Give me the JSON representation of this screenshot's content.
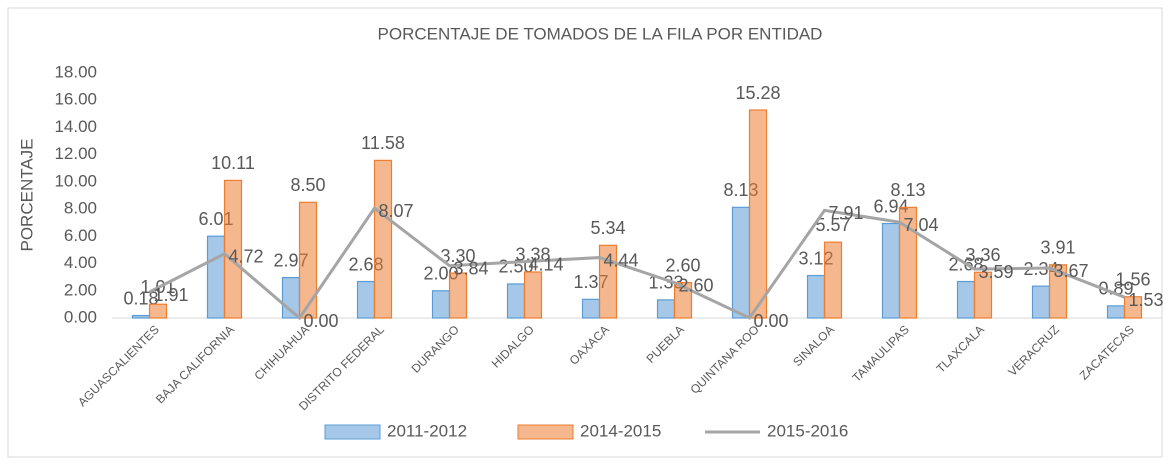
{
  "chart_data": {
    "type": "bar-line",
    "title": "PORCENTAJE DE TOMADOS DE LA FILA POR ENTIDAD",
    "y_label": "PORCENTAJE",
    "categories": [
      "AGUASCALIENTES",
      "BAJA CALIFORNIA",
      "CHIHUAHUA",
      "DISTRITO FEDERAL",
      "DURANGO",
      "HIDALGO",
      "OAXACA",
      "PUEBLA",
      "QUINTANA ROO",
      "SINALOA",
      "TAMAULIPAS",
      "TLAXCALA",
      "VERACRUZ",
      "ZACATECAS"
    ],
    "series": [
      {
        "name": "2011-2012",
        "type": "bar",
        "color": "#5b9bd5",
        "values": [
          0.18,
          6.01,
          2.97,
          2.68,
          2.0,
          2.5,
          1.37,
          1.33,
          8.13,
          3.12,
          6.94,
          2.68,
          2.34,
          0.89
        ],
        "value_labels": [
          "0.18",
          "6.01",
          "2.97",
          "2.68",
          "2.00",
          "2.50",
          "1.37",
          "1.33",
          "8.13",
          "3.12",
          "6.94",
          "2.68",
          "2.34",
          "0.89"
        ]
      },
      {
        "name": "2014-2015",
        "type": "bar",
        "color": "#ed7d31",
        "values": [
          1.01,
          10.11,
          8.5,
          11.58,
          3.3,
          3.38,
          5.34,
          2.6,
          15.28,
          5.57,
          8.13,
          3.36,
          3.91,
          1.56
        ],
        "value_labels": [
          "1.01",
          "10.11",
          "8.50",
          "11.58",
          "3.30",
          "3.38",
          "5.34",
          "2.60",
          "15.28",
          "5.57",
          "8.13",
          "3.36",
          "3.91",
          "1.56"
        ]
      },
      {
        "name": "2015-2016",
        "type": "line",
        "color": "#a5a5a5",
        "values": [
          1.91,
          4.72,
          0.0,
          8.07,
          3.84,
          4.14,
          4.44,
          2.6,
          0.0,
          7.91,
          7.04,
          3.59,
          3.67,
          1.53
        ],
        "value_labels": [
          "1.91",
          "4.72",
          "0.00",
          "8.07",
          "3.84",
          "4.14",
          "4.44",
          "2.60",
          "0.00",
          "7.91",
          "7.04",
          "3.59",
          "3.67",
          "1.53"
        ]
      }
    ],
    "ylim": [
      0,
      18
    ],
    "yticks": [
      {
        "value": 0,
        "label": "0.00"
      },
      {
        "value": 2,
        "label": "2.00"
      },
      {
        "value": 4,
        "label": "4.00"
      },
      {
        "value": 6,
        "label": "6.00"
      },
      {
        "value": 8,
        "label": "8.00"
      },
      {
        "value": 10,
        "label": "10.00"
      },
      {
        "value": 12,
        "label": "12.00"
      },
      {
        "value": 14,
        "label": "14.00"
      },
      {
        "value": 16,
        "label": "16.00"
      },
      {
        "value": 18,
        "label": "18.00"
      }
    ],
    "legend": "bottom"
  }
}
